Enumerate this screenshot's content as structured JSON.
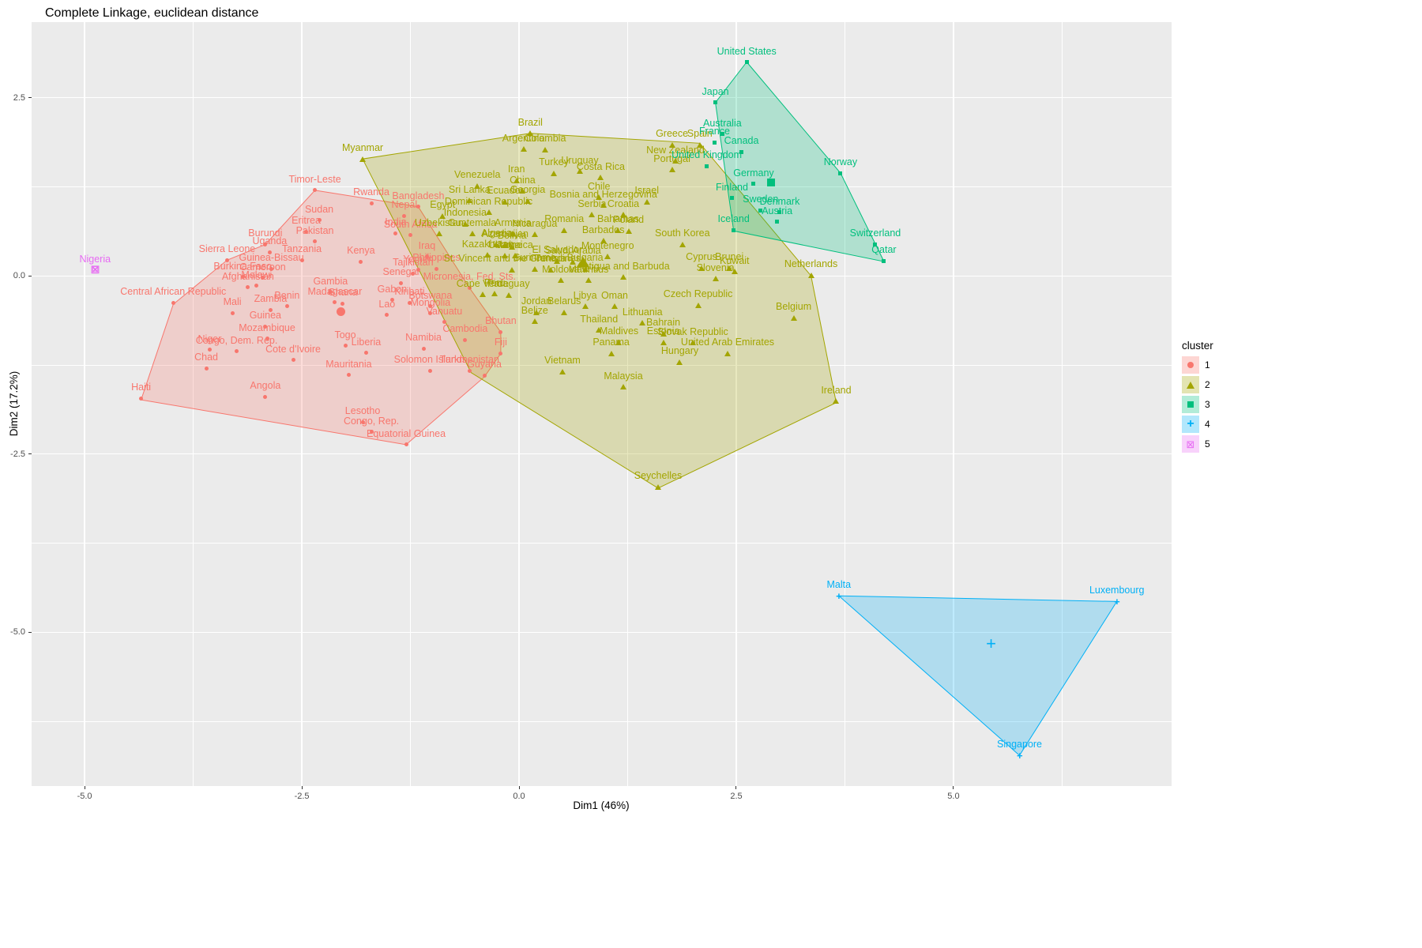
{
  "chart_data": {
    "type": "scatter",
    "title": "Complete Linkage, euclidean distance",
    "xlabel": "Dim1 (46%)",
    "ylabel": "Dim2 (17.2%)",
    "xlim": [
      -5.61,
      7.51
    ],
    "ylim": [
      -7.16,
      3.56
    ],
    "xticks": [
      -5.0,
      -2.5,
      0.0,
      2.5,
      5.0
    ],
    "xtick_labels": [
      "-5.0",
      "-2.5",
      "0.0",
      "2.5",
      "5.0"
    ],
    "yticks": [
      2.5,
      0.0,
      -2.5,
      -5.0
    ],
    "ytick_labels": [
      "2.5",
      "0.0",
      "-2.5",
      "-5.0"
    ],
    "minor_xticks": [
      -3.75,
      -1.25,
      1.25,
      3.75,
      6.25
    ],
    "minor_yticks": [
      1.25,
      -1.25,
      -3.75,
      -6.25
    ],
    "grid": true,
    "panel_background": "#EBEBEB",
    "grid_color": "#FFFFFF",
    "axis_text_color": "#4D4D4D",
    "legend": {
      "title": "cluster",
      "position": "right",
      "items": [
        "1",
        "2",
        "3",
        "4",
        "5"
      ]
    },
    "clusters": [
      {
        "id": "1",
        "color": "#F8766D",
        "shape": "circle",
        "centroid": [
          -2.05,
          -0.5
        ],
        "hull": [
          [
            -2.35,
            1.2
          ],
          [
            -1.16,
            0.97
          ],
          [
            -0.57,
            -0.17
          ],
          [
            -0.21,
            -0.79
          ],
          [
            -0.21,
            -1.09
          ],
          [
            -0.4,
            -1.42
          ],
          [
            -1.3,
            -2.37
          ],
          [
            -4.35,
            -1.74
          ],
          [
            -3.98,
            -0.4
          ],
          [
            -3.36,
            0.22
          ],
          [
            -2.92,
            0.44
          ]
        ]
      },
      {
        "id": "2",
        "color": "#A3A500",
        "shape": "triangle",
        "centroid": [
          0.74,
          0.2
        ],
        "hull": [
          [
            0.13,
            2.0
          ],
          [
            2.08,
            1.86
          ],
          [
            3.36,
            0.0
          ],
          [
            3.65,
            -1.78
          ],
          [
            1.6,
            -2.98
          ],
          [
            -0.55,
            -1.36
          ],
          [
            -1.8,
            1.64
          ]
        ]
      },
      {
        "id": "3",
        "color": "#00BF7D",
        "shape": "square",
        "centroid": [
          2.9,
          1.31
        ],
        "hull": [
          [
            2.62,
            3.0
          ],
          [
            3.7,
            1.44
          ],
          [
            4.2,
            0.2
          ],
          [
            2.47,
            0.63
          ],
          [
            2.26,
            2.43
          ]
        ]
      },
      {
        "id": "4",
        "color": "#00B0F6",
        "shape": "plus",
        "centroid": [
          5.43,
          -5.17
        ],
        "hull": [
          [
            3.68,
            -4.49
          ],
          [
            6.88,
            -4.57
          ],
          [
            5.76,
            -6.73
          ]
        ]
      },
      {
        "id": "5",
        "color": "#E76BF3",
        "shape": "boxed",
        "centroid": [
          -4.88,
          0.08
        ],
        "hull": []
      }
    ],
    "points": [
      {
        "n": "Timor-Leste",
        "c": 1,
        "x": -2.35,
        "y": 1.2
      },
      {
        "n": "Rwanda",
        "c": 1,
        "x": -1.7,
        "y": 1.02
      },
      {
        "n": "Sudan",
        "c": 1,
        "x": -2.3,
        "y": 0.78
      },
      {
        "n": "Eritrea",
        "c": 1,
        "x": -2.45,
        "y": 0.62
      },
      {
        "n": "Pakistan",
        "c": 1,
        "x": -2.35,
        "y": 0.48
      },
      {
        "n": "Burundi",
        "c": 1,
        "x": -2.92,
        "y": 0.44
      },
      {
        "n": "Uganda",
        "c": 1,
        "x": -2.87,
        "y": 0.33
      },
      {
        "n": "Sierra Leone",
        "c": 1,
        "x": -3.36,
        "y": 0.22
      },
      {
        "n": "Tanzania",
        "c": 1,
        "x": -2.5,
        "y": 0.22
      },
      {
        "n": "Guinea-Bissau",
        "c": 1,
        "x": -2.85,
        "y": 0.1
      },
      {
        "n": "Burkina Faso",
        "c": 1,
        "x": -3.18,
        "y": -0.02
      },
      {
        "n": "Cameroon",
        "c": 1,
        "x": -2.95,
        "y": -0.03
      },
      {
        "n": "Afghanistan",
        "c": 1,
        "x": -3.12,
        "y": -0.16
      },
      {
        "n": "Malawi",
        "c": 1,
        "x": -3.02,
        "y": -0.14
      },
      {
        "n": "Central African Republic",
        "c": 1,
        "x": -3.98,
        "y": -0.38
      },
      {
        "n": "Mali",
        "c": 1,
        "x": -3.3,
        "y": -0.52
      },
      {
        "n": "Zambia",
        "c": 1,
        "x": -2.86,
        "y": -0.48
      },
      {
        "n": "Benin",
        "c": 1,
        "x": -2.67,
        "y": -0.43
      },
      {
        "n": "Gambia",
        "c": 1,
        "x": -2.17,
        "y": -0.23
      },
      {
        "n": "Madagascar",
        "c": 1,
        "x": -2.12,
        "y": -0.37
      },
      {
        "n": "Ghana",
        "c": 1,
        "x": -2.03,
        "y": -0.39
      },
      {
        "n": "Guinea",
        "c": 1,
        "x": -2.92,
        "y": -0.71
      },
      {
        "n": "Mozambique",
        "c": 1,
        "x": -2.9,
        "y": -0.88
      },
      {
        "n": "Niger",
        "c": 1,
        "x": -3.56,
        "y": -1.04
      },
      {
        "n": "Congo, Dem. Rep.",
        "c": 1,
        "x": -3.25,
        "y": -1.06
      },
      {
        "n": "Cote d'Ivoire",
        "c": 1,
        "x": -2.6,
        "y": -1.18
      },
      {
        "n": "Chad",
        "c": 1,
        "x": -3.6,
        "y": -1.3
      },
      {
        "n": "Haiti",
        "c": 1,
        "x": -4.35,
        "y": -1.72
      },
      {
        "n": "Angola",
        "c": 1,
        "x": -2.92,
        "y": -1.7
      },
      {
        "n": "Togo",
        "c": 1,
        "x": -2.0,
        "y": -0.98
      },
      {
        "n": "Liberia",
        "c": 1,
        "x": -1.76,
        "y": -1.08
      },
      {
        "n": "Mauritania",
        "c": 1,
        "x": -1.96,
        "y": -1.39
      },
      {
        "n": "Lesotho",
        "c": 1,
        "x": -1.8,
        "y": -2.05
      },
      {
        "n": "Congo, Rep.",
        "c": 1,
        "x": -1.7,
        "y": -2.19
      },
      {
        "n": "Equatorial Guinea",
        "c": 1,
        "x": -1.3,
        "y": -2.37
      },
      {
        "n": "Kenya",
        "c": 1,
        "x": -1.82,
        "y": 0.2
      },
      {
        "n": "Yemen",
        "c": 1,
        "x": -1.16,
        "y": 0.08
      },
      {
        "n": "Senegal",
        "c": 1,
        "x": -1.36,
        "y": -0.1
      },
      {
        "n": "Iraq",
        "c": 1,
        "x": -1.06,
        "y": 0.27
      },
      {
        "n": "Nepal",
        "c": 1,
        "x": -1.32,
        "y": 0.84
      },
      {
        "n": "Bangladesh",
        "c": 1,
        "x": -1.16,
        "y": 0.97
      },
      {
        "n": "India",
        "c": 1,
        "x": -1.42,
        "y": 0.6
      },
      {
        "n": "South Africa",
        "c": 1,
        "x": -1.25,
        "y": 0.57
      },
      {
        "n": "Tajikistan",
        "c": 1,
        "x": -1.22,
        "y": 0.03
      },
      {
        "n": "Philippines",
        "c": 1,
        "x": -0.95,
        "y": 0.1
      },
      {
        "n": "Micronesia, Fed. Sts.",
        "c": 1,
        "x": -0.57,
        "y": -0.17
      },
      {
        "n": "Kiribati",
        "c": 1,
        "x": -1.26,
        "y": -0.38
      },
      {
        "n": "Gabon",
        "c": 1,
        "x": -1.46,
        "y": -0.34
      },
      {
        "n": "Botswana",
        "c": 1,
        "x": -1.02,
        "y": -0.43
      },
      {
        "n": "Lao",
        "c": 1,
        "x": -1.52,
        "y": -0.55
      },
      {
        "n": "Mongolia",
        "c": 1,
        "x": -1.02,
        "y": -0.53
      },
      {
        "n": "Vanuatu",
        "c": 1,
        "x": -0.86,
        "y": -0.65
      },
      {
        "n": "Cambodia",
        "c": 1,
        "x": -0.62,
        "y": -0.9
      },
      {
        "n": "Namibia",
        "c": 1,
        "x": -1.1,
        "y": -1.02
      },
      {
        "n": "Bhutan",
        "c": 1,
        "x": -0.21,
        "y": -0.79
      },
      {
        "n": "Fiji",
        "c": 1,
        "x": -0.21,
        "y": -1.09
      },
      {
        "n": "Solomon Islands",
        "c": 1,
        "x": -1.02,
        "y": -1.33
      },
      {
        "n": "Turkmenistan",
        "c": 1,
        "x": -0.57,
        "y": -1.33
      },
      {
        "n": "Guyana",
        "c": 1,
        "x": -0.4,
        "y": -1.4
      },
      {
        "n": "Brazil",
        "c": 2,
        "x": 0.13,
        "y": 2.0
      },
      {
        "n": "Myanmar",
        "c": 2,
        "x": -1.8,
        "y": 1.64
      },
      {
        "n": "Argentina",
        "c": 2,
        "x": 0.05,
        "y": 1.78
      },
      {
        "n": "Colombia",
        "c": 2,
        "x": 0.3,
        "y": 1.77
      },
      {
        "n": "Turkey",
        "c": 2,
        "x": 0.4,
        "y": 1.44
      },
      {
        "n": "Uruguay",
        "c": 2,
        "x": 0.7,
        "y": 1.47
      },
      {
        "n": "Costa Rica",
        "c": 2,
        "x": 0.94,
        "y": 1.38
      },
      {
        "n": "Iran",
        "c": 2,
        "x": -0.03,
        "y": 1.34
      },
      {
        "n": "Venezuela",
        "c": 2,
        "x": -0.48,
        "y": 1.26
      },
      {
        "n": "China",
        "c": 2,
        "x": 0.04,
        "y": 1.19
      },
      {
        "n": "Sri Lanka",
        "c": 2,
        "x": -0.57,
        "y": 1.06
      },
      {
        "n": "Ecuador",
        "c": 2,
        "x": -0.16,
        "y": 1.04
      },
      {
        "n": "Georgia",
        "c": 2,
        "x": 0.1,
        "y": 1.05
      },
      {
        "n": "Chile",
        "c": 2,
        "x": 0.92,
        "y": 1.1
      },
      {
        "n": "Bosnia and Herzegovina",
        "c": 2,
        "x": 0.97,
        "y": 0.99
      },
      {
        "n": "Israel",
        "c": 2,
        "x": 1.47,
        "y": 1.04
      },
      {
        "n": "Dominican Republic",
        "c": 2,
        "x": -0.35,
        "y": 0.89
      },
      {
        "n": "Serbia",
        "c": 2,
        "x": 0.84,
        "y": 0.86
      },
      {
        "n": "Croatia",
        "c": 2,
        "x": 1.2,
        "y": 0.86
      },
      {
        "n": "Egypt",
        "c": 2,
        "x": -0.88,
        "y": 0.84
      },
      {
        "n": "Indonesia",
        "c": 2,
        "x": -0.62,
        "y": 0.73
      },
      {
        "n": "Uzbekistan",
        "c": 2,
        "x": -0.92,
        "y": 0.59
      },
      {
        "n": "Guatemala",
        "c": 2,
        "x": -0.54,
        "y": 0.59
      },
      {
        "n": "Romania",
        "c": 2,
        "x": 0.52,
        "y": 0.64
      },
      {
        "n": "Bahamas",
        "c": 2,
        "x": 1.14,
        "y": 0.64
      },
      {
        "n": "Poland",
        "c": 2,
        "x": 1.26,
        "y": 0.63
      },
      {
        "n": "Armenia",
        "c": 2,
        "x": -0.07,
        "y": 0.59
      },
      {
        "n": "Nicaragua",
        "c": 2,
        "x": 0.18,
        "y": 0.58
      },
      {
        "n": "Barbados",
        "c": 2,
        "x": 0.97,
        "y": 0.49
      },
      {
        "n": "Algeria",
        "c": 2,
        "x": -0.26,
        "y": 0.44
      },
      {
        "n": "Azerbaijan",
        "c": 2,
        "x": -0.16,
        "y": 0.43
      },
      {
        "n": "Bolivia",
        "c": 2,
        "x": -0.08,
        "y": 0.41
      },
      {
        "n": "South Korea",
        "c": 2,
        "x": 1.88,
        "y": 0.44
      },
      {
        "n": "Kazakhstan",
        "c": 2,
        "x": -0.36,
        "y": 0.29
      },
      {
        "n": "Ukraine",
        "c": 2,
        "x": -0.16,
        "y": 0.28
      },
      {
        "n": "Jamaica",
        "c": 2,
        "x": -0.05,
        "y": 0.28
      },
      {
        "n": "Montenegro",
        "c": 2,
        "x": 1.02,
        "y": 0.27
      },
      {
        "n": "Saudi Arabia",
        "c": 2,
        "x": 0.62,
        "y": 0.2
      },
      {
        "n": "El Salvador",
        "c": 2,
        "x": 0.44,
        "y": 0.21
      },
      {
        "n": "St. Vincent and the Grenadines",
        "c": 2,
        "x": -0.08,
        "y": 0.09
      },
      {
        "n": "Suriname",
        "c": 2,
        "x": 0.18,
        "y": 0.1
      },
      {
        "n": "Tunisia",
        "c": 2,
        "x": 0.36,
        "y": 0.09
      },
      {
        "n": "Bulgaria",
        "c": 2,
        "x": 0.76,
        "y": 0.1
      },
      {
        "n": "Cyprus",
        "c": 2,
        "x": 2.1,
        "y": 0.11
      },
      {
        "n": "Brunei",
        "c": 2,
        "x": 2.42,
        "y": 0.11
      },
      {
        "n": "Kuwait",
        "c": 2,
        "x": 2.48,
        "y": 0.06
      },
      {
        "n": "Antigua and Barbuda",
        "c": 2,
        "x": 1.2,
        "y": -0.02
      },
      {
        "n": "Slovenia",
        "c": 2,
        "x": 2.26,
        "y": -0.04
      },
      {
        "n": "Netherlands",
        "c": 2,
        "x": 3.36,
        "y": 0.01
      },
      {
        "n": "Moldova",
        "c": 2,
        "x": 0.48,
        "y": -0.06
      },
      {
        "n": "Mauritius",
        "c": 2,
        "x": 0.8,
        "y": -0.06
      },
      {
        "n": "Peru",
        "c": 2,
        "x": -0.28,
        "y": -0.25
      },
      {
        "n": "Cape Verde",
        "c": 2,
        "x": -0.42,
        "y": -0.26
      },
      {
        "n": "Paraguay",
        "c": 2,
        "x": -0.12,
        "y": -0.27
      },
      {
        "n": "Libya",
        "c": 2,
        "x": 0.76,
        "y": -0.43
      },
      {
        "n": "Oman",
        "c": 2,
        "x": 1.1,
        "y": -0.43
      },
      {
        "n": "Jordan",
        "c": 2,
        "x": 0.2,
        "y": -0.51
      },
      {
        "n": "Belarus",
        "c": 2,
        "x": 0.52,
        "y": -0.51
      },
      {
        "n": "Czech Republic",
        "c": 2,
        "x": 2.06,
        "y": -0.41
      },
      {
        "n": "Lithuania",
        "c": 2,
        "x": 1.42,
        "y": -0.66
      },
      {
        "n": "Belize",
        "c": 2,
        "x": 0.18,
        "y": -0.64
      },
      {
        "n": "Thailand",
        "c": 2,
        "x": 0.92,
        "y": -0.76
      },
      {
        "n": "Bahrain",
        "c": 2,
        "x": 1.66,
        "y": -0.81
      },
      {
        "n": "Belgium",
        "c": 2,
        "x": 3.16,
        "y": -0.59
      },
      {
        "n": "Maldives",
        "c": 2,
        "x": 1.15,
        "y": -0.93
      },
      {
        "n": "Estonia",
        "c": 2,
        "x": 1.66,
        "y": -0.93
      },
      {
        "n": "Slovak Republic",
        "c": 2,
        "x": 2.0,
        "y": -0.94
      },
      {
        "n": "Panama",
        "c": 2,
        "x": 1.06,
        "y": -1.09
      },
      {
        "n": "United Arab Emirates",
        "c": 2,
        "x": 2.4,
        "y": -1.09
      },
      {
        "n": "Hungary",
        "c": 2,
        "x": 1.85,
        "y": -1.21
      },
      {
        "n": "Vietnam",
        "c": 2,
        "x": 0.5,
        "y": -1.34
      },
      {
        "n": "Malaysia",
        "c": 2,
        "x": 1.2,
        "y": -1.56
      },
      {
        "n": "Ireland",
        "c": 2,
        "x": 3.65,
        "y": -1.76
      },
      {
        "n": "Seychelles",
        "c": 2,
        "x": 1.6,
        "y": -2.96
      },
      {
        "n": "Greece",
        "c": 2,
        "x": 1.76,
        "y": 1.84
      },
      {
        "n": "Spain",
        "c": 2,
        "x": 2.08,
        "y": 1.84
      },
      {
        "n": "New Zealand",
        "c": 2,
        "x": 1.8,
        "y": 1.61
      },
      {
        "n": "Portugal",
        "c": 2,
        "x": 1.76,
        "y": 1.49
      },
      {
        "n": "United States",
        "c": 3,
        "x": 2.62,
        "y": 3.0
      },
      {
        "n": "Japan",
        "c": 3,
        "x": 2.26,
        "y": 2.43
      },
      {
        "n": "Australia",
        "c": 3,
        "x": 2.34,
        "y": 1.99
      },
      {
        "n": "France",
        "c": 3,
        "x": 2.25,
        "y": 1.87
      },
      {
        "n": "Canada",
        "c": 3,
        "x": 2.56,
        "y": 1.74
      },
      {
        "n": "United Kingdom",
        "c": 3,
        "x": 2.16,
        "y": 1.54
      },
      {
        "n": "Germany",
        "c": 3,
        "x": 2.7,
        "y": 1.29
      },
      {
        "n": "Norway",
        "c": 3,
        "x": 3.7,
        "y": 1.44
      },
      {
        "n": "Finland",
        "c": 3,
        "x": 2.45,
        "y": 1.09
      },
      {
        "n": "Sweden",
        "c": 3,
        "x": 2.78,
        "y": 0.92
      },
      {
        "n": "Denmark",
        "c": 3,
        "x": 3.0,
        "y": 0.89
      },
      {
        "n": "Austria",
        "c": 3,
        "x": 2.97,
        "y": 0.76
      },
      {
        "n": "Iceland",
        "c": 3,
        "x": 2.47,
        "y": 0.64
      },
      {
        "n": "Switzerland",
        "c": 3,
        "x": 4.1,
        "y": 0.44
      },
      {
        "n": "Qatar",
        "c": 3,
        "x": 4.2,
        "y": 0.21
      },
      {
        "n": "Malta",
        "c": 4,
        "x": 3.68,
        "y": -4.49
      },
      {
        "n": "Luxembourg",
        "c": 4,
        "x": 6.88,
        "y": -4.57
      },
      {
        "n": "Singapore",
        "c": 4,
        "x": 5.76,
        "y": -6.73
      },
      {
        "n": "Nigeria",
        "c": 5,
        "x": -4.88,
        "y": 0.08
      }
    ]
  }
}
